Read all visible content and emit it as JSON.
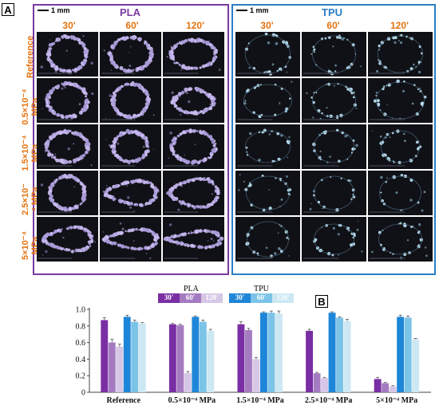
{
  "figure": {
    "panel_a_label": "A",
    "panel_b_label": "B",
    "scale_bar_label": "1 mm",
    "pla_title": "PLA",
    "tpu_title": "TPU",
    "time_labels": [
      "30'",
      "60'",
      "120'"
    ],
    "row_labels": [
      [
        "Reference"
      ],
      [
        "0.5×10⁻⁴",
        "MPa"
      ],
      [
        "1.5×10⁻⁴",
        "MPa"
      ],
      [
        "2.5×10⁻",
        "⁴ MPa"
      ],
      [
        "5×10⁻⁴",
        "MPa"
      ]
    ],
    "colors": {
      "pla_frame": "#7a3aa0",
      "tpu_frame": "#2a7fc5",
      "time_label": "#e4730f",
      "pla_30": "#7a2ea3",
      "pla_60": "#a47bc1",
      "pla_120": "#d7c7e6",
      "tpu_30": "#1e86d8",
      "tpu_60": "#7cc3e8",
      "tpu_120": "#cde8f3"
    }
  },
  "chart_data": {
    "type": "bar",
    "categories": [
      "Reference",
      "0.5×10⁻⁴ MPa",
      "1.5×10⁻⁴ MPa",
      "2.5×10⁻⁴ MPa",
      "5×10⁻⁴ MPa"
    ],
    "legend_groups": [
      {
        "label": "PLA",
        "entries": [
          "30'",
          "60'",
          "120'"
        ]
      },
      {
        "label": "TPU",
        "entries": [
          "30'",
          "60'",
          "120'"
        ]
      }
    ],
    "series": [
      {
        "name": "PLA 30'",
        "values": [
          0.87,
          0.82,
          0.82,
          0.74,
          0.16
        ],
        "errors": [
          0.03,
          0.01,
          0.03,
          0.02,
          0.02
        ]
      },
      {
        "name": "PLA 60'",
        "values": [
          0.6,
          0.81,
          0.75,
          0.23,
          0.11
        ],
        "errors": [
          0.04,
          0.01,
          0.02,
          0.01,
          0.01
        ]
      },
      {
        "name": "PLA 120'",
        "values": [
          0.55,
          0.23,
          0.4,
          0.17,
          0.07
        ],
        "errors": [
          0.03,
          0.02,
          0.02,
          0.01,
          0.01
        ]
      },
      {
        "name": "TPU 30'",
        "values": [
          0.91,
          0.91,
          0.96,
          0.96,
          0.91
        ],
        "errors": [
          0.02,
          0.01,
          0.01,
          0.01,
          0.02
        ]
      },
      {
        "name": "TPU 60'",
        "values": [
          0.85,
          0.85,
          0.96,
          0.9,
          0.9
        ],
        "errors": [
          0.02,
          0.02,
          0.02,
          0.01,
          0.02
        ]
      },
      {
        "name": "TPU 120'",
        "values": [
          0.83,
          0.74,
          0.95,
          0.86,
          0.64
        ],
        "errors": [
          0.01,
          0.02,
          0.03,
          0.02,
          0.01
        ]
      }
    ],
    "ylim": [
      0,
      1.0
    ],
    "yticks": [
      "0",
      "0.2",
      "0.4",
      "0.6",
      "0.8",
      "1.0"
    ],
    "title": "",
    "xlabel": "",
    "ylabel": "",
    "grid": false,
    "legend_position": "top-center"
  }
}
